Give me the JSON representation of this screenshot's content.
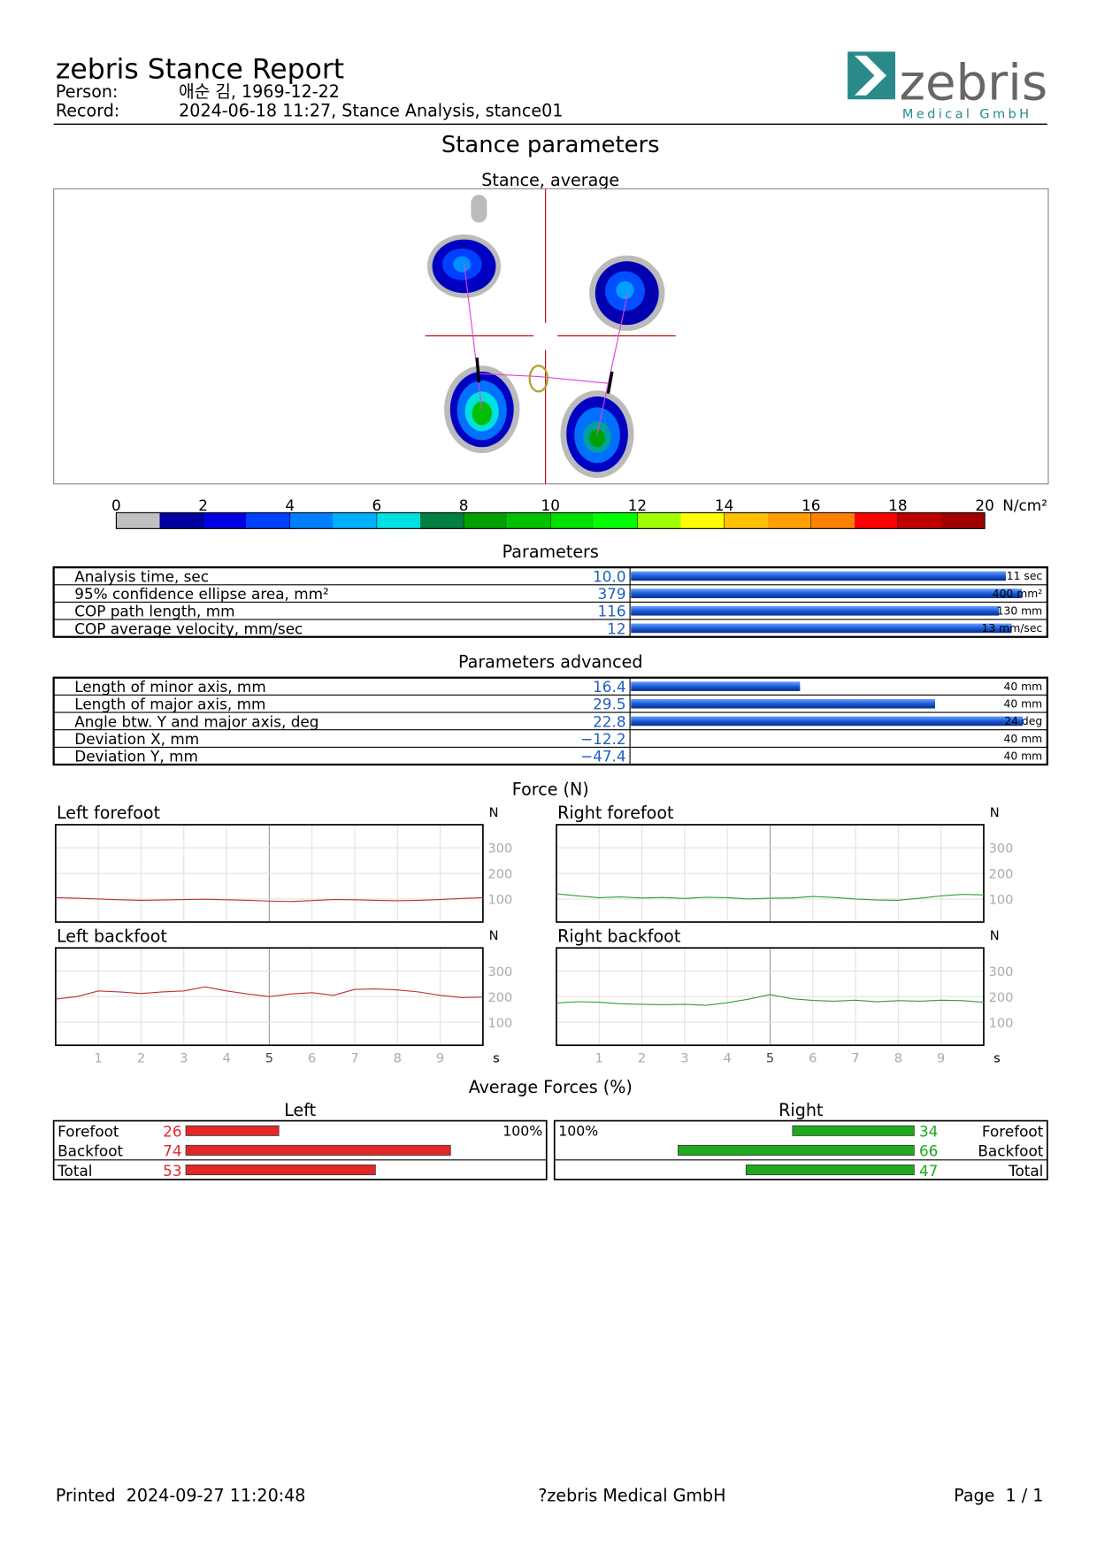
{
  "header": {
    "title": "zebris Stance Report",
    "person_label": "Person:",
    "person": "애순 김, 1969-12-22",
    "record_label": "Record:",
    "record": "2024-06-18 11:27, Stance Analysis, stance01",
    "logo": "zebris",
    "logo_sub": "Medical GmbH"
  },
  "page_title": "Stance parameters",
  "stance": {
    "title": "Stance, average",
    "scale": {
      "ticks": [
        0,
        2,
        4,
        6,
        8,
        10,
        12,
        14,
        16,
        18,
        20
      ],
      "unit": "N/cm²",
      "colors": [
        "#c0c0c0",
        "#0000a0",
        "#0000e0",
        "#0040ff",
        "#0080ff",
        "#00b0ff",
        "#00e0e0",
        "#008040",
        "#00a000",
        "#00c000",
        "#00e000",
        "#00ff00",
        "#a0ff00",
        "#ffff00",
        "#ffc000",
        "#ffa000",
        "#ff8000",
        "#ff0000",
        "#c00000",
        "#a00000"
      ]
    }
  },
  "parameters": {
    "title": "Parameters",
    "rows": [
      {
        "label": "Analysis time, sec",
        "value": {
          "value": 10,
          "label": "10.0"
        },
        "max": {
          "value": 11,
          "label": "11 sec"
        }
      },
      {
        "label": "95% confidence ellipse area, mm²",
        "value": 379,
        "max": {
          "value": 400,
          "label": "400 mm²"
        }
      },
      {
        "label": "COP path length, mm",
        "value": 116,
        "max": {
          "value": 130,
          "label": "130 mm"
        }
      },
      {
        "label": "COP average velocity, mm/sec",
        "value": 12,
        "max": {
          "value": 13,
          "label": "13 mm/sec"
        }
      }
    ]
  },
  "parameters_advanced": {
    "title": "Parameters advanced",
    "rows": [
      {
        "label": "Length of minor axis, mm",
        "value": 16.4,
        "max": {
          "value": 40,
          "label": "40 mm"
        }
      },
      {
        "label": "Length of major axis, mm",
        "value": 29.5,
        "max": {
          "value": 40,
          "label": "40 mm"
        }
      },
      {
        "label": "Angle btw. Y and major axis, deg",
        "value": 22.8,
        "max": {
          "value": 24,
          "label": "24 deg"
        }
      },
      {
        "label": "Deviation X, mm",
        "value": {
          "value": -12.2,
          "label": "−12.2"
        },
        "max": {
          "value": 40,
          "label": "40 mm"
        }
      },
      {
        "label": "Deviation Y, mm",
        "value": {
          "value": -47.4,
          "label": "−47.4"
        },
        "max": {
          "value": 40,
          "label": "40 mm"
        }
      }
    ]
  },
  "force": {
    "title": "Force (N)",
    "unit_y": "N",
    "unit_x": "s",
    "x": [
      0,
      0.5,
      1,
      1.5,
      2,
      2.5,
      3,
      3.5,
      4,
      4.5,
      5,
      5.5,
      6,
      6.5,
      7,
      7.5,
      8,
      8.5,
      9,
      9.5,
      10
    ],
    "xlim": [
      0,
      10
    ],
    "xticks": [
      1,
      2,
      3,
      4,
      5,
      6,
      7,
      8,
      9
    ],
    "ylim": [
      10,
      390
    ],
    "yticks": [
      100,
      200,
      300
    ],
    "panels": [
      {
        "title": "Left forefoot",
        "color": "#c03030",
        "values": [
          105,
          103,
          100,
          97,
          95,
          96,
          98,
          99,
          97,
          95,
          92,
          90,
          94,
          98,
          97,
          95,
          93,
          95,
          98,
          102,
          105
        ]
      },
      {
        "title": "Right forefoot",
        "color": "#30a030",
        "values": [
          120,
          112,
          105,
          108,
          104,
          106,
          102,
          107,
          105,
          100,
          103,
          104,
          110,
          106,
          100,
          96,
          95,
          103,
          112,
          118,
          116
        ]
      },
      {
        "title": "Left backfoot",
        "color": "#c03030",
        "values": [
          190,
          200,
          222,
          218,
          212,
          218,
          222,
          238,
          222,
          210,
          200,
          210,
          215,
          205,
          228,
          230,
          226,
          218,
          205,
          196,
          198
        ]
      },
      {
        "title": "Right backfoot",
        "color": "#30a030",
        "values": [
          175,
          180,
          178,
          172,
          170,
          168,
          170,
          166,
          176,
          190,
          208,
          192,
          185,
          182,
          186,
          180,
          184,
          182,
          186,
          184,
          178
        ]
      }
    ]
  },
  "average_forces": {
    "title": "Average Forces (%)",
    "scale": {
      "value": 100,
      "label": "100%"
    },
    "sides": [
      {
        "title": "Left",
        "color": "#e02828",
        "rows": [
          {
            "label": "Forefoot",
            "value": 26
          },
          {
            "label": "Backfoot",
            "value": 74
          },
          {
            "label": "Total",
            "value": 53
          }
        ]
      },
      {
        "title": "Right",
        "color": "#20a820",
        "rows": [
          {
            "label": "Forefoot",
            "value": 34
          },
          {
            "label": "Backfoot",
            "value": 66
          },
          {
            "label": "Total",
            "value": 47
          }
        ]
      }
    ]
  },
  "footer": {
    "printed": "Printed  2024-09-27 11:20:48",
    "company": "?zebris Medical GmbH",
    "page": "Page  1 / 1"
  }
}
